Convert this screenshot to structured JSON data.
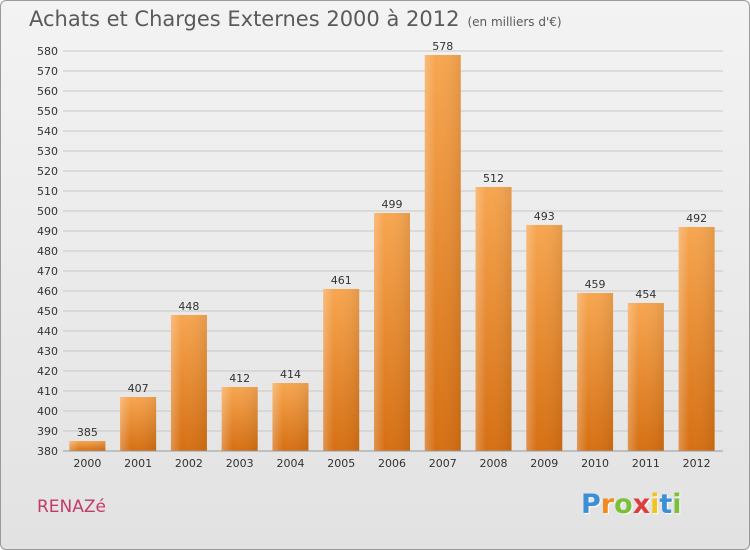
{
  "title": "Achats et Charges Externes 2000 à 2012",
  "subtitle": "(en milliers d'€)",
  "commune": "RENAZé",
  "brand": {
    "letters": [
      "P",
      "r",
      "o",
      "x",
      "i",
      "t",
      "i"
    ],
    "colors": [
      "#3a8fd6",
      "#f28a1e",
      "#7cbf3a",
      "#e23b3b",
      "#f2c21e",
      "#3a8fd6",
      "#7cbf3a"
    ]
  },
  "chart_data": {
    "type": "bar",
    "categories": [
      "2000",
      "2001",
      "2002",
      "2003",
      "2004",
      "2005",
      "2006",
      "2007",
      "2008",
      "2009",
      "2010",
      "2011",
      "2012"
    ],
    "values": [
      385,
      407,
      448,
      412,
      414,
      461,
      499,
      578,
      512,
      493,
      459,
      454,
      492
    ],
    "ylim": [
      380,
      580
    ],
    "ytick_step": 10,
    "grid": true,
    "bar_color": "#f0902e"
  }
}
